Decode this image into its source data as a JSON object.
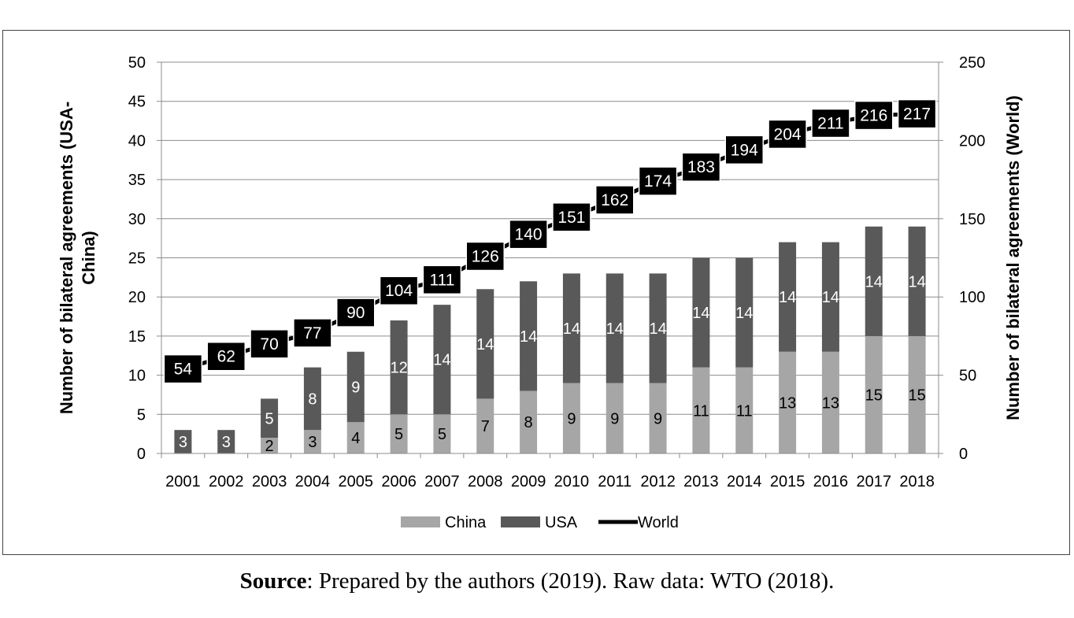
{
  "caption": {
    "bold": "Source",
    "rest": ": Prepared by the authors (2019). Raw data: WTO (2018)."
  },
  "chart_data": {
    "type": "bar",
    "stacked": true,
    "categories": [
      "2001",
      "2002",
      "2003",
      "2004",
      "2005",
      "2006",
      "2007",
      "2008",
      "2009",
      "2010",
      "2011",
      "2012",
      "2013",
      "2014",
      "2015",
      "2016",
      "2017",
      "2018"
    ],
    "series": [
      {
        "name": "China",
        "type": "bar",
        "axis": "left",
        "color": "#a6a6a6",
        "values": [
          0,
          0,
          2,
          3,
          4,
          5,
          5,
          7,
          8,
          9,
          9,
          9,
          11,
          11,
          13,
          13,
          15,
          15
        ]
      },
      {
        "name": "USA",
        "type": "bar",
        "axis": "left",
        "color": "#595959",
        "values": [
          3,
          3,
          5,
          8,
          9,
          12,
          14,
          14,
          14,
          14,
          14,
          14,
          14,
          14,
          14,
          14,
          14,
          14
        ]
      },
      {
        "name": "World",
        "type": "line",
        "axis": "right",
        "color": "#000000",
        "values": [
          54,
          62,
          70,
          77,
          90,
          104,
          111,
          126,
          140,
          151,
          162,
          174,
          183,
          194,
          204,
          211,
          216,
          217
        ]
      }
    ],
    "ylabel_left": "Number of bilateral agreements (USA-China)",
    "ylabel_right": "Number of bilateral agreements (World)",
    "ylim_left": [
      0,
      50
    ],
    "yticks_left": [
      0,
      5,
      10,
      15,
      20,
      25,
      30,
      35,
      40,
      45,
      50
    ],
    "ylim_right": [
      0,
      250
    ],
    "yticks_right": [
      0,
      50,
      100,
      150,
      200,
      250
    ],
    "grid": true,
    "legend": "bottom"
  }
}
